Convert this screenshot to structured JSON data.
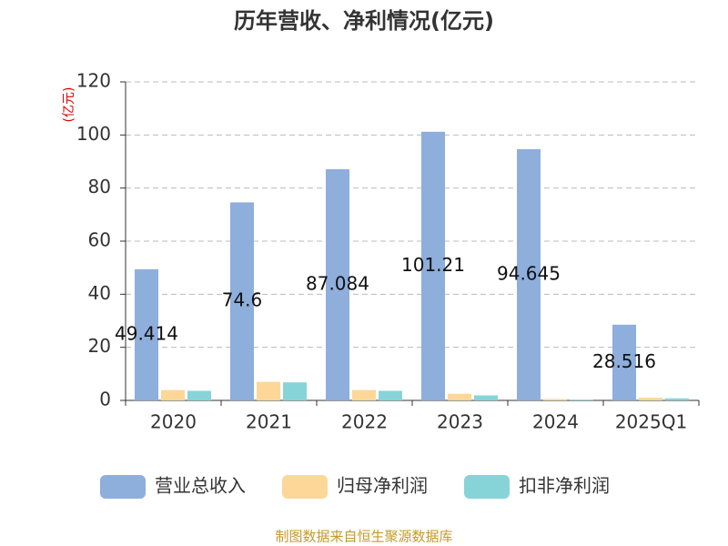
{
  "chart_data": {
    "type": "bar",
    "title": "历年营收、净利情况(亿元)",
    "y_axis_label": "(亿元)",
    "categories": [
      "2020",
      "2021",
      "2022",
      "2023",
      "2024",
      "2025Q1"
    ],
    "series": [
      {
        "name": "营业总收入",
        "color": "#8eaedc",
        "values": [
          49.414,
          74.6,
          87.084,
          101.21,
          94.645,
          28.516
        ],
        "show_labels": true
      },
      {
        "name": "归母净利润",
        "color": "#fdd797",
        "values": [
          3.9,
          7.0,
          3.9,
          2.5,
          0.5,
          1.0
        ]
      },
      {
        "name": "扣非净利润",
        "color": "#86d4d8",
        "values": [
          3.6,
          6.8,
          3.6,
          1.9,
          0.3,
          0.8
        ]
      }
    ],
    "ylim": [
      0,
      120
    ],
    "yticks": [
      0,
      20,
      40,
      60,
      80,
      100,
      120
    ],
    "grid": true,
    "source": "制图数据来自恒生聚源数据库"
  }
}
